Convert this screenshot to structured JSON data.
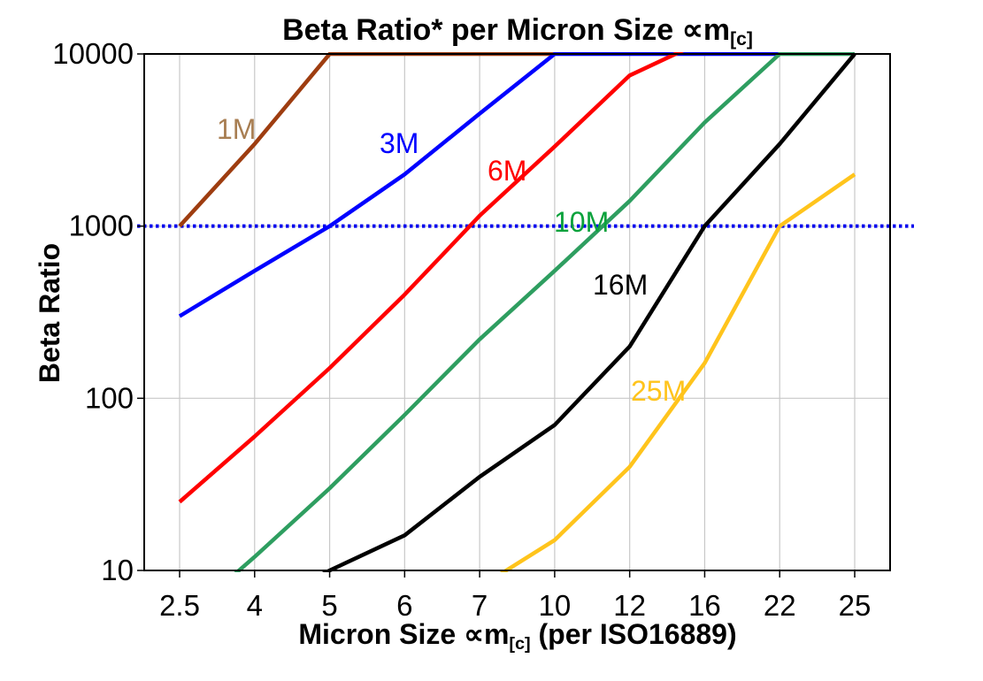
{
  "title": {
    "main": "Beta Ratio* per Micron Size ∝m",
    "sub": "[c]"
  },
  "axes": {
    "y_label": "Beta Ratio",
    "x_label_pre": "Micron Size ∝m",
    "x_label_sub": "[c]",
    "x_label_post": " (per ISO16889)"
  },
  "colors": {
    "gridline": "#c8c8c8",
    "axis": "#000000",
    "reference_line": "#0000ee",
    "background": "#ffffff",
    "tick_text": "#000000"
  },
  "chart_data": {
    "type": "line",
    "title": "Beta Ratio* per Micron Size ∝m[c]",
    "xlabel": "Micron Size ∝m[c] (per ISO16889)",
    "ylabel": "Beta Ratio",
    "x_categories": [
      "2.5",
      "4",
      "5",
      "6",
      "7",
      "10",
      "12",
      "16",
      "22",
      "25"
    ],
    "y_ticks": [
      "10000",
      "1000",
      "100",
      "10"
    ],
    "y_tick_values": [
      10000,
      1000,
      100,
      10
    ],
    "ylim": [
      10,
      10000
    ],
    "y_scale": "log",
    "grid": true,
    "legend_position": "inline-labels",
    "reference_line": {
      "value": 1000,
      "style": "dotted",
      "color": "#0000ee",
      "note": "beta ratio 1000 rating line"
    },
    "series": [
      {
        "name": "1M",
        "color": "#9e3d10",
        "label_color": "#a87e52",
        "values": [
          1000,
          3000,
          10000,
          10000,
          10000,
          10000,
          null,
          null,
          null,
          null
        ]
      },
      {
        "name": "3M",
        "color": "#0000ff",
        "label_color": "#0000ff",
        "values": [
          300,
          550,
          1000,
          2000,
          4500,
          10000,
          10000,
          10000,
          10000,
          null
        ]
      },
      {
        "name": "6M",
        "color": "#ff0000",
        "label_color": "#ff0000",
        "values": [
          25,
          60,
          150,
          400,
          1150,
          2900,
          7500,
          12000,
          null,
          null
        ]
      },
      {
        "name": "10M",
        "color": "#2e9e60",
        "label_color": "#0aa23c",
        "values": [
          5,
          12,
          30,
          80,
          220,
          550,
          1400,
          4000,
          10000,
          10000
        ]
      },
      {
        "name": "16M",
        "color": "#000000",
        "label_color": "#000000",
        "values": [
          null,
          6,
          10,
          16,
          35,
          70,
          200,
          1000,
          3000,
          10000
        ]
      },
      {
        "name": "25M",
        "color": "#ffc41c",
        "label_color": "#ffc41c",
        "values": [
          null,
          null,
          null,
          null,
          8,
          15,
          40,
          160,
          1000,
          2000
        ]
      }
    ]
  }
}
